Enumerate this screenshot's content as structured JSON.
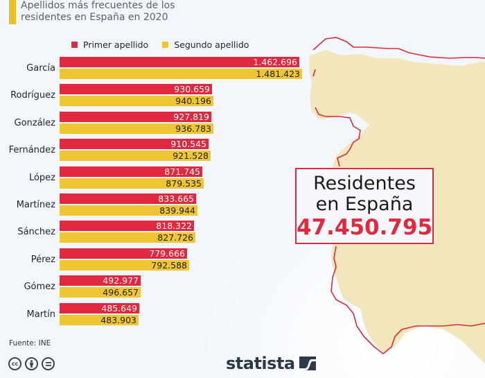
{
  "title": {
    "line1": "Apellidos más frecuentes de los",
    "line2": "residentes en España en 2020"
  },
  "legend": {
    "primer": "Primer apellido",
    "segundo": "Segundo apellido"
  },
  "colors": {
    "primer": "#e1283e",
    "segundo": "#eec532",
    "accent": "#e9bf2a",
    "map_fill": "#f2e6bc",
    "map_border": "#e1283e"
  },
  "callout": {
    "line1": "Residentes",
    "line2": "en España",
    "value": "47.450.795"
  },
  "source": "Fuente: INE",
  "brand": "statista",
  "license_icons": [
    "cc-icon",
    "by-attribution-icon",
    "no-derivatives-icon"
  ],
  "chart_data": {
    "type": "bar",
    "orientation": "horizontal",
    "title": "Apellidos más frecuentes de los residentes en España en 2020",
    "xlabel": "",
    "ylabel": "",
    "categories": [
      "García",
      "Rodríguez",
      "González",
      "Fernández",
      "López",
      "Martínez",
      "Sánchez",
      "Pérez",
      "Gómez",
      "Martín"
    ],
    "series": [
      {
        "name": "Primer apellido",
        "values": [
          1462696,
          930659,
          927819,
          910545,
          871745,
          833665,
          818322,
          779666,
          492977,
          485649
        ],
        "labels": [
          "1.462.696",
          "930.659",
          "927.819",
          "910.545",
          "871.745",
          "833.665",
          "818.322",
          "779.666",
          "492.977",
          "485.649"
        ]
      },
      {
        "name": "Segundo apellido",
        "values": [
          1481423,
          940196,
          936783,
          921528,
          879535,
          839944,
          827726,
          792588,
          496657,
          483903
        ],
        "labels": [
          "1.481.423",
          "940.196",
          "936.783",
          "921.528",
          "879.535",
          "839.944",
          "827.726",
          "792.588",
          "496.657",
          "483.903"
        ]
      }
    ],
    "xlim": [
      0,
      1481423
    ],
    "grid": false,
    "legend_position": "top"
  }
}
